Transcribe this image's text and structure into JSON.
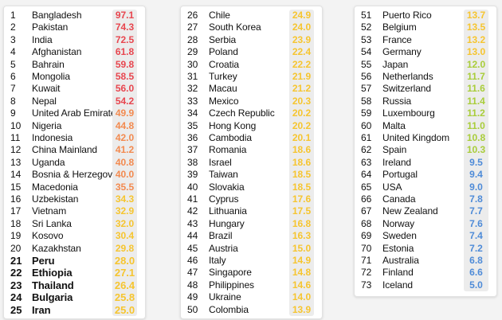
{
  "chart_data": {
    "type": "table",
    "columns": [
      "rank",
      "country",
      "value"
    ],
    "color_scale": {
      "highest": "#e8464f",
      "high": "#f38a4f",
      "mid": "#f6c52f",
      "low_mid": "#a9cd3a",
      "lowest": "#4e8bd8"
    },
    "rows": [
      {
        "rank": "1",
        "country": "Bangladesh",
        "value": "97.1"
      },
      {
        "rank": "2",
        "country": "Pakistan",
        "value": "74.3"
      },
      {
        "rank": "3",
        "country": "India",
        "value": "72.5"
      },
      {
        "rank": "4",
        "country": "Afghanistan",
        "value": "61.8"
      },
      {
        "rank": "5",
        "country": "Bahrain",
        "value": "59.8"
      },
      {
        "rank": "6",
        "country": "Mongolia",
        "value": "58.5"
      },
      {
        "rank": "7",
        "country": "Kuwait",
        "value": "56.0"
      },
      {
        "rank": "8",
        "country": "Nepal",
        "value": "54.2"
      },
      {
        "rank": "9",
        "country": "United Arab Emirates",
        "value": "49.9"
      },
      {
        "rank": "10",
        "country": "Nigeria",
        "value": "44.8"
      },
      {
        "rank": "11",
        "country": "Indonesia",
        "value": "42.0"
      },
      {
        "rank": "12",
        "country": "China Mainland",
        "value": "41.2"
      },
      {
        "rank": "13",
        "country": "Uganda",
        "value": "40.8"
      },
      {
        "rank": "14",
        "country": "Bosnia & Herzegovina",
        "value": "40.0"
      },
      {
        "rank": "15",
        "country": "Macedonia",
        "value": "35.5"
      },
      {
        "rank": "16",
        "country": "Uzbekistan",
        "value": "34.3"
      },
      {
        "rank": "17",
        "country": "Vietnam",
        "value": "32.9"
      },
      {
        "rank": "18",
        "country": "Sri Lanka",
        "value": "32.0"
      },
      {
        "rank": "19",
        "country": "Kosovo",
        "value": "30.4"
      },
      {
        "rank": "20",
        "country": "Kazakhstan",
        "value": "29.8"
      },
      {
        "rank": "21",
        "country": "Peru",
        "value": "28.0"
      },
      {
        "rank": "22",
        "country": "Ethiopia",
        "value": "27.1"
      },
      {
        "rank": "23",
        "country": "Thailand",
        "value": "26.4"
      },
      {
        "rank": "24",
        "country": "Bulgaria",
        "value": "25.8"
      },
      {
        "rank": "25",
        "country": "Iran",
        "value": "25.0"
      },
      {
        "rank": "26",
        "country": "Chile",
        "value": "24.9"
      },
      {
        "rank": "27",
        "country": "South Korea",
        "value": "24.0"
      },
      {
        "rank": "28",
        "country": "Serbia",
        "value": "23.9"
      },
      {
        "rank": "29",
        "country": "Poland",
        "value": "22.4"
      },
      {
        "rank": "30",
        "country": "Croatia",
        "value": "22.2"
      },
      {
        "rank": "31",
        "country": "Turkey",
        "value": "21.9"
      },
      {
        "rank": "32",
        "country": "Macau",
        "value": "21.2"
      },
      {
        "rank": "33",
        "country": "Mexico",
        "value": "20.3"
      },
      {
        "rank": "34",
        "country": "Czech Republic",
        "value": "20.2"
      },
      {
        "rank": "35",
        "country": "Hong Kong",
        "value": "20.2"
      },
      {
        "rank": "36",
        "country": "Cambodia",
        "value": "20.1"
      },
      {
        "rank": "37",
        "country": "Romania",
        "value": "18.6"
      },
      {
        "rank": "38",
        "country": "Israel",
        "value": "18.6"
      },
      {
        "rank": "39",
        "country": "Taiwan",
        "value": "18.5"
      },
      {
        "rank": "40",
        "country": "Slovakia",
        "value": "18.5"
      },
      {
        "rank": "41",
        "country": "Cyprus",
        "value": "17.6"
      },
      {
        "rank": "42",
        "country": "Lithuania",
        "value": "17.5"
      },
      {
        "rank": "43",
        "country": "Hungary",
        "value": "16.8"
      },
      {
        "rank": "44",
        "country": "Brazil",
        "value": "16.3"
      },
      {
        "rank": "45",
        "country": "Austria",
        "value": "15.0"
      },
      {
        "rank": "46",
        "country": "Italy",
        "value": "14.9"
      },
      {
        "rank": "47",
        "country": "Singapore",
        "value": "14.8"
      },
      {
        "rank": "48",
        "country": "Philippines",
        "value": "14.6"
      },
      {
        "rank": "49",
        "country": "Ukraine",
        "value": "14.0"
      },
      {
        "rank": "50",
        "country": "Colombia",
        "value": "13.9"
      },
      {
        "rank": "51",
        "country": "Puerto Rico",
        "value": "13.7"
      },
      {
        "rank": "52",
        "country": "Belgium",
        "value": "13.5"
      },
      {
        "rank": "53",
        "country": "France",
        "value": "13.2"
      },
      {
        "rank": "54",
        "country": "Germany",
        "value": "13.0"
      },
      {
        "rank": "55",
        "country": "Japan",
        "value": "12.0"
      },
      {
        "rank": "56",
        "country": "Netherlands",
        "value": "11.7"
      },
      {
        "rank": "57",
        "country": "Switzerland",
        "value": "11.6"
      },
      {
        "rank": "58",
        "country": "Russia",
        "value": "11.4"
      },
      {
        "rank": "59",
        "country": "Luxembourg",
        "value": "11.2"
      },
      {
        "rank": "60",
        "country": "Malta",
        "value": "11.0"
      },
      {
        "rank": "61",
        "country": "United Kingdom",
        "value": "10.8"
      },
      {
        "rank": "62",
        "country": "Spain",
        "value": "10.3"
      },
      {
        "rank": "63",
        "country": "Ireland",
        "value": "9.5"
      },
      {
        "rank": "64",
        "country": "Portugal",
        "value": "9.4"
      },
      {
        "rank": "65",
        "country": "USA",
        "value": "9.0"
      },
      {
        "rank": "66",
        "country": "Canada",
        "value": "7.8"
      },
      {
        "rank": "67",
        "country": "New Zealand",
        "value": "7.7"
      },
      {
        "rank": "68",
        "country": "Norway",
        "value": "7.6"
      },
      {
        "rank": "69",
        "country": "Sweden",
        "value": "7.4"
      },
      {
        "rank": "70",
        "country": "Estonia",
        "value": "7.2"
      },
      {
        "rank": "71",
        "country": "Australia",
        "value": "6.8"
      },
      {
        "rank": "72",
        "country": "Finland",
        "value": "6.6"
      },
      {
        "rank": "73",
        "country": "Iceland",
        "value": "5.0"
      }
    ]
  }
}
